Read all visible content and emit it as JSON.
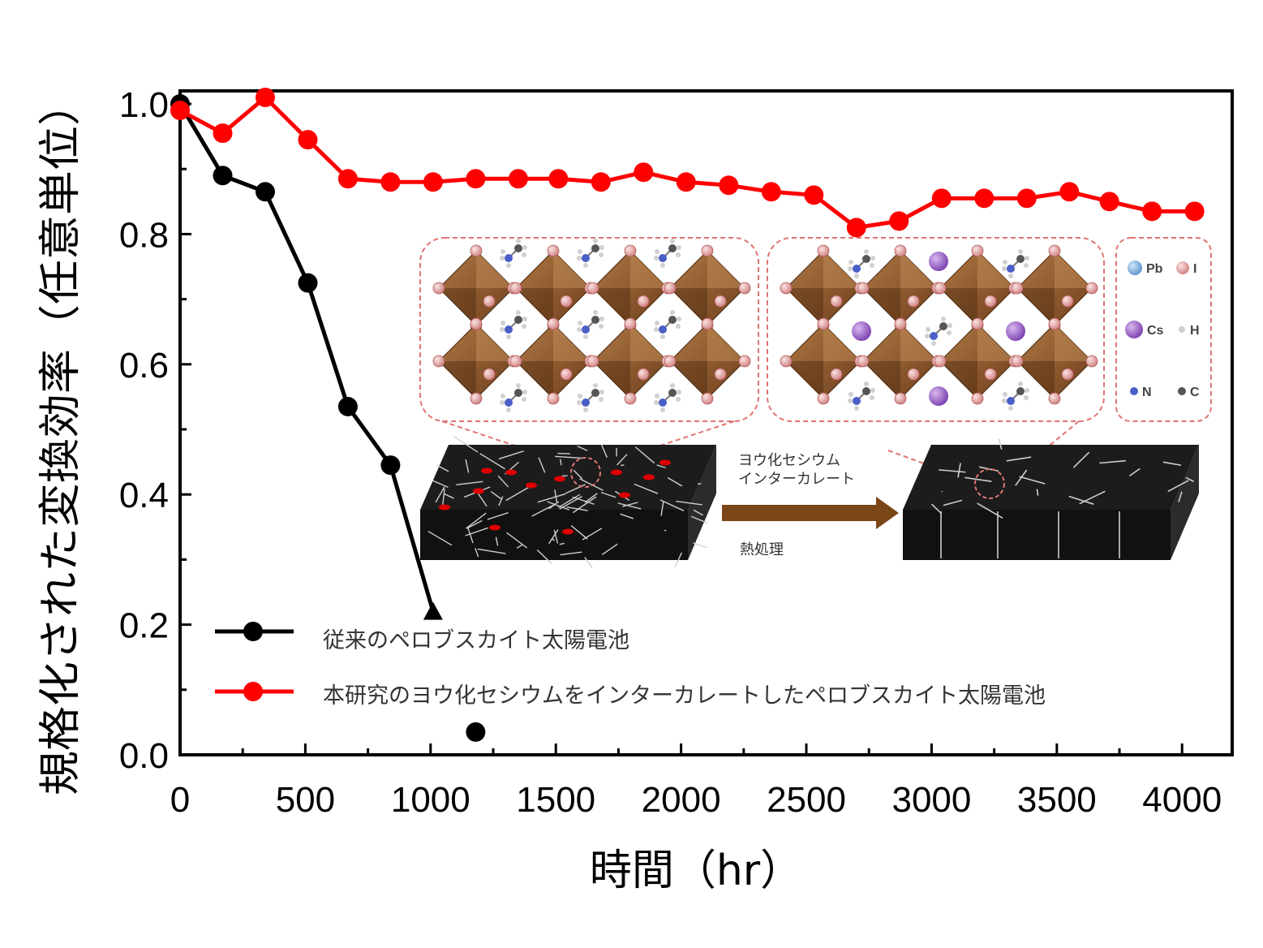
{
  "chart_data": {
    "type": "line",
    "title": "",
    "xlabel": "時間（hr）",
    "ylabel": "規格化された変換効率（任意単位）",
    "xlim": [
      0,
      4200
    ],
    "ylim": [
      0,
      1.02
    ],
    "x_ticks": [
      "0",
      "500",
      "1000",
      "1500",
      "2000",
      "2500",
      "3000",
      "3500",
      "4000"
    ],
    "y_ticks": [
      "0.0",
      "0.2",
      "0.4",
      "0.6",
      "0.8",
      "1.0"
    ],
    "legend_position": "lower-left",
    "series": [
      {
        "name": "従来のペロブスカイト太陽電池",
        "color": "#000000",
        "x": [
          0,
          170,
          340,
          510,
          670,
          840,
          1010
        ],
        "y": [
          1.0,
          0.89,
          0.865,
          0.725,
          0.535,
          0.445,
          0.22
        ]
      },
      {
        "name": "本研究のヨウ化セシウムをインターカレートしたペロブスカイト太陽電池",
        "color": "#ff0000",
        "x": [
          0,
          170,
          340,
          510,
          670,
          840,
          1010,
          1180,
          1350,
          1510,
          1680,
          1850,
          2020,
          2190,
          2360,
          2530,
          2700,
          2870,
          3040,
          3210,
          3380,
          3550,
          3710,
          3880,
          4050
        ],
        "y": [
          0.99,
          0.955,
          1.01,
          0.945,
          0.885,
          0.88,
          0.88,
          0.885,
          0.885,
          0.885,
          0.88,
          0.895,
          0.88,
          0.875,
          0.865,
          0.86,
          0.81,
          0.82,
          0.855,
          0.855,
          0.855,
          0.865,
          0.85,
          0.835,
          0.835
        ]
      }
    ],
    "extra_points": [
      {
        "x": 1180,
        "y": 0.035,
        "color": "#000000"
      }
    ]
  },
  "inset": {
    "process_label_1": "ヨウ化セシウム",
    "process_label_2": "インターカレート",
    "heat_label": "熱処理",
    "legend_items": [
      {
        "symbol": "Pb",
        "color": "#7fb2e0"
      },
      {
        "symbol": "I",
        "color": "#e8a0a0"
      },
      {
        "symbol": "Cs",
        "color": "#9b59c6"
      },
      {
        "symbol": "H",
        "color": "#d0d0d0"
      },
      {
        "symbol": "N",
        "color": "#4a5ec8"
      },
      {
        "symbol": "C",
        "color": "#555555"
      }
    ]
  }
}
